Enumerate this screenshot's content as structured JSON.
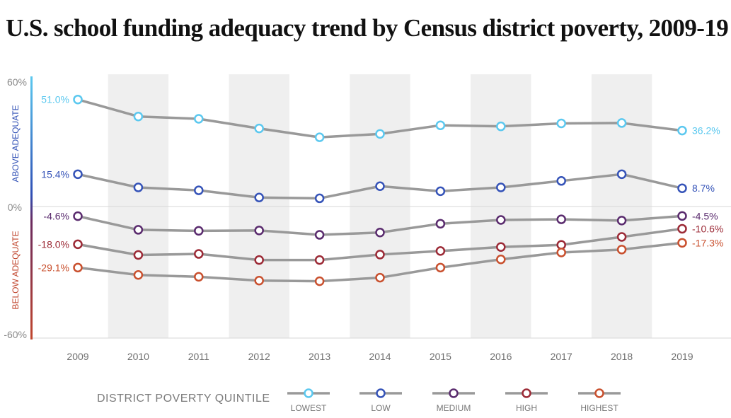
{
  "title": "U.S. school funding adequacy trend by Census district poverty, 2009-19",
  "legend_title": "DISTRICT POVERTY QUINTILE",
  "axis": {
    "top_label": "60%",
    "zero_label": "0%",
    "bottom_label": "-60%",
    "above_label": "ABOVE ADEQUATE",
    "below_label": "BELOW ADEQUATE"
  },
  "colors": {
    "line": "#999999",
    "band": "#efefef",
    "above": "#2f4fb5",
    "below": "#c0452d"
  },
  "chart_data": {
    "type": "line",
    "x": [
      2009,
      2010,
      2011,
      2012,
      2013,
      2014,
      2015,
      2016,
      2017,
      2018,
      2019
    ],
    "ylim": [
      -60,
      60
    ],
    "series": [
      {
        "name": "LOWEST",
        "color": "#5bc8ef",
        "values": [
          51.0,
          42.9,
          41.8,
          37.2,
          33.0,
          34.6,
          38.7,
          38.2,
          39.6,
          39.8,
          36.2
        ],
        "start_label": "51.0%",
        "end_label": "36.2%"
      },
      {
        "name": "LOW",
        "color": "#3553b8",
        "values": [
          15.4,
          9.1,
          7.7,
          4.3,
          3.9,
          9.7,
          7.3,
          9.1,
          12.2,
          15.4,
          8.7
        ],
        "start_label": "15.4%",
        "end_label": "8.7%"
      },
      {
        "name": "MEDIUM",
        "color": "#5a2b6e",
        "values": [
          -4.6,
          -11.1,
          -11.6,
          -11.4,
          -13.5,
          -12.4,
          -8.2,
          -6.4,
          -6.1,
          -6.7,
          -4.5
        ],
        "start_label": "-4.6%",
        "end_label": "-4.5%"
      },
      {
        "name": "HIGH",
        "color": "#9c2a36",
        "values": [
          -18.0,
          -23.1,
          -22.6,
          -25.5,
          -25.5,
          -22.9,
          -21.2,
          -19.3,
          -18.3,
          -14.5,
          -10.6
        ],
        "start_label": "-18.0%",
        "end_label": "-10.6%"
      },
      {
        "name": "HIGHEST",
        "color": "#c9502e",
        "values": [
          -29.1,
          -32.6,
          -33.5,
          -35.3,
          -35.6,
          -33.9,
          -29.1,
          -25.2,
          -21.9,
          -20.5,
          -17.3
        ],
        "start_label": "-29.1%",
        "end_label": "-17.3%"
      }
    ]
  }
}
